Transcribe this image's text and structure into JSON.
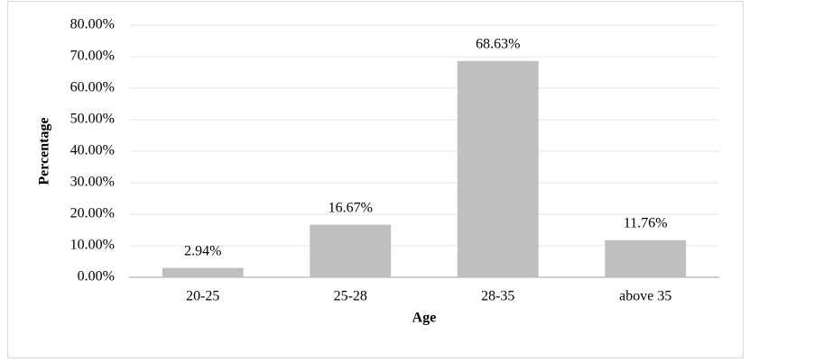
{
  "chart_data": {
    "type": "bar",
    "categories": [
      "20-25",
      "25-28",
      "28-35",
      "above 35"
    ],
    "values": [
      2.94,
      16.67,
      68.63,
      11.76
    ],
    "value_labels": [
      "2.94%",
      "16.67%",
      "68.63%",
      "11.76%"
    ],
    "color": "#bfbfbf",
    "x_label": "Age",
    "y_label": "Percentage",
    "ylim": [
      0,
      80
    ],
    "yticks": [
      {
        "value": 0,
        "label": "0.00%"
      },
      {
        "value": 10,
        "label": "10.00%"
      },
      {
        "value": 20,
        "label": "20.00%"
      },
      {
        "value": 30,
        "label": "30.00%"
      },
      {
        "value": 40,
        "label": "40.00%"
      },
      {
        "value": 50,
        "label": "50.00%"
      },
      {
        "value": 60,
        "label": "60.00%"
      },
      {
        "value": 70,
        "label": "70.00%"
      },
      {
        "value": 80,
        "label": "80.00%"
      }
    ],
    "grid": true
  }
}
